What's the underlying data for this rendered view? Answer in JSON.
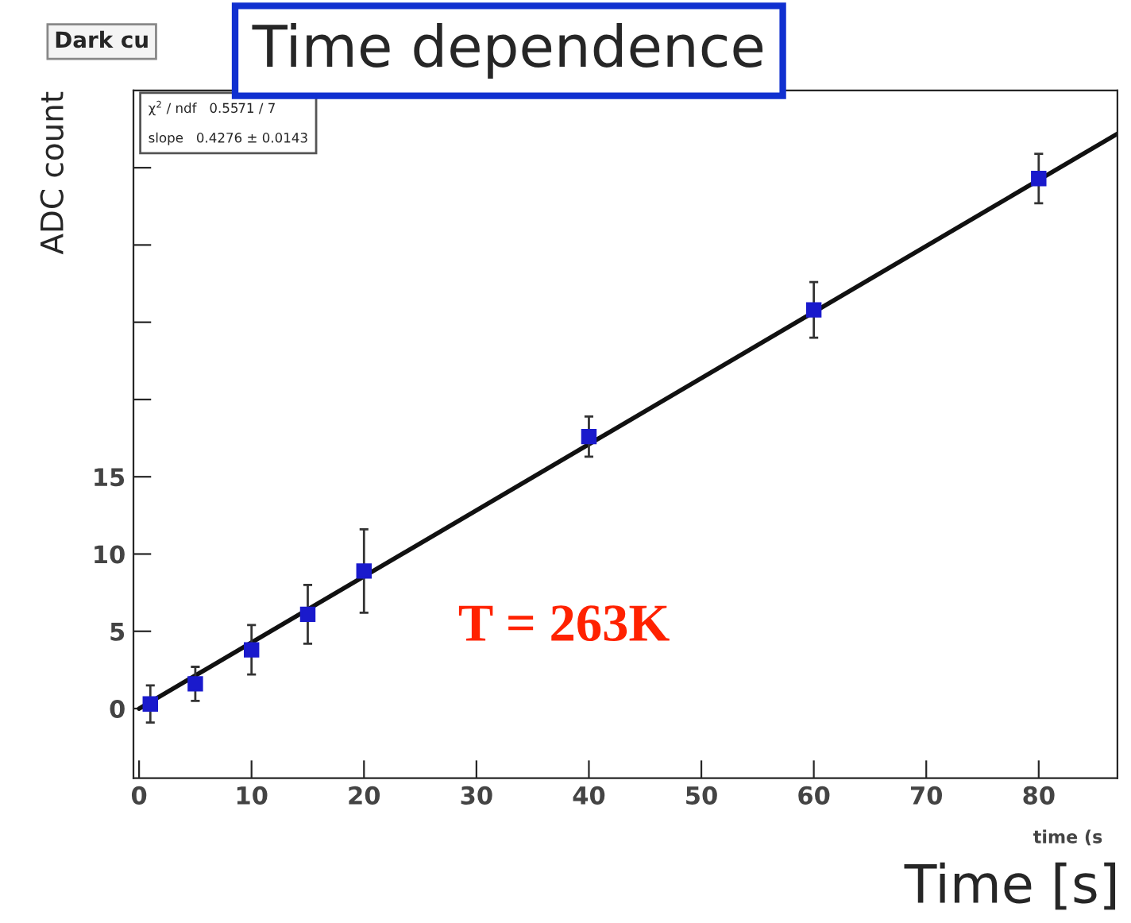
{
  "chart_data": {
    "type": "scatter",
    "title": "Time dependence",
    "xlabel": "Time [s]",
    "ylabel": "ADC count",
    "annotations": [
      "Dark cu",
      "χ$^{2}$ / ndf   0.5571 / 7",
      "slope   0.4276 ± 0.0143",
      "T = 263K",
      "time (s"
    ],
    "x": [
      1,
      5,
      10,
      15,
      20,
      40,
      60,
      80
    ],
    "series": [
      {
        "color": "#1a1acc",
        "marker": "square",
        "values": [
          0.3,
          1.6,
          3.8,
          6.1,
          8.9,
          17.6,
          25.8,
          34.3
        ],
        "errors": [
          1.2,
          1.1,
          1.6,
          1.9,
          2.7,
          1.3,
          1.8,
          1.6
        ]
      },
      {
        "type": "line",
        "color": "#111111",
        "line_style": "solid",
        "x": [
          0,
          87
        ],
        "values": [
          0,
          37.2
        ]
      }
    ],
    "xlim": [
      -0.5,
      87
    ],
    "xticks": [
      0,
      10,
      20,
      30,
      40,
      50,
      60,
      70,
      80
    ],
    "ylim": [
      -4.5,
      40
    ],
    "yticks": [
      0,
      5,
      10,
      15,
      {
        "value": 20,
        "label": null
      },
      {
        "value": 25,
        "label": null
      },
      {
        "value": 30,
        "label": null
      },
      {
        "value": 35,
        "label": null
      }
    ],
    "grid": false,
    "legend": false
  }
}
